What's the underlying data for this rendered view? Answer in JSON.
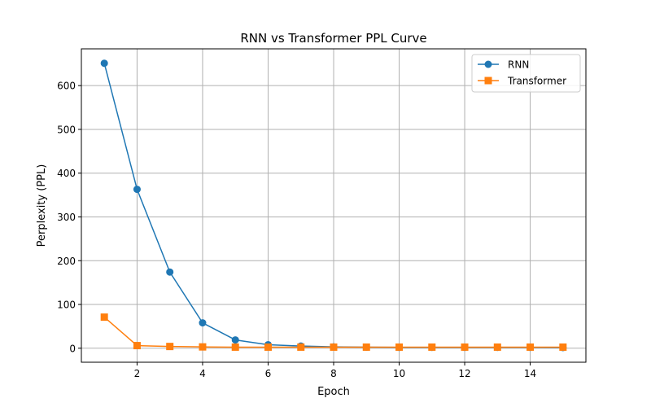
{
  "chart_data": {
    "type": "line",
    "title": "RNN vs Transformer PPL Curve",
    "xlabel": "Epoch",
    "ylabel": "Perplexity (PPL)",
    "x": [
      1,
      2,
      3,
      4,
      5,
      6,
      7,
      8,
      9,
      10,
      11,
      12,
      13,
      14,
      15
    ],
    "xlim": [
      0.3,
      15.7
    ],
    "ylim": [
      -32,
      684
    ],
    "xticks": [
      2,
      4,
      6,
      8,
      10,
      12,
      14
    ],
    "yticks": [
      0,
      100,
      200,
      300,
      400,
      500,
      600
    ],
    "grid": true,
    "legend_position": "top-right",
    "series": [
      {
        "name": "RNN",
        "color": "#1f77b4",
        "marker": "circle",
        "values": [
          651,
          363,
          174,
          58,
          19,
          8,
          5,
          3,
          2.5,
          2,
          2,
          2,
          2,
          2,
          1.5
        ]
      },
      {
        "name": "Transformer",
        "color": "#ff7f0e",
        "marker": "square",
        "values": [
          71,
          6,
          4,
          3,
          2.5,
          2.5,
          2.5,
          2.5,
          2.5,
          2.5,
          2.5,
          2.5,
          2.5,
          2.5,
          2.5
        ]
      }
    ]
  }
}
